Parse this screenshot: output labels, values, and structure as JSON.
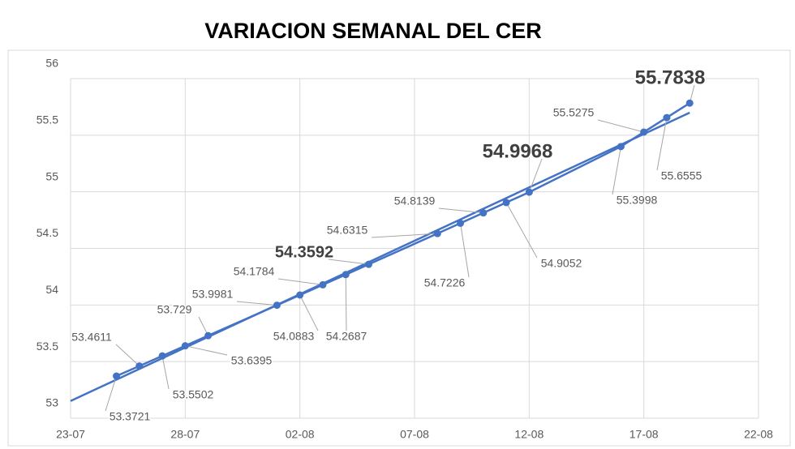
{
  "chart_data": {
    "type": "line",
    "title": "VARIACION SEMANAL DEL CER",
    "x": [
      "25-07",
      "26-07",
      "27-07",
      "28-07",
      "29-07",
      "01-08",
      "02-08",
      "03-08",
      "04-08",
      "05-08",
      "08-08",
      "09-08",
      "10-08",
      "11-08",
      "12-08",
      "16-08",
      "17-08",
      "18-08",
      "19-08"
    ],
    "series": [
      {
        "color": "#4472c4",
        "values": [
          53.3721,
          53.4611,
          53.5502,
          53.6395,
          53.729,
          53.9981,
          54.0883,
          54.1784,
          54.2687,
          54.3592,
          54.6315,
          54.7226,
          54.8139,
          54.9052,
          54.9968,
          55.3998,
          55.5275,
          55.6555,
          55.7838
        ]
      }
    ],
    "xlim": [
      "23-07",
      "22-08"
    ],
    "xticks": [
      "23-07",
      "28-07",
      "02-08",
      "07-08",
      "12-08",
      "17-08",
      "22-08"
    ],
    "ylim": [
      53,
      56
    ],
    "yticks": [
      53,
      53.5,
      54,
      54.5,
      55,
      55.5,
      56
    ],
    "grid": true,
    "trendline": true
  }
}
